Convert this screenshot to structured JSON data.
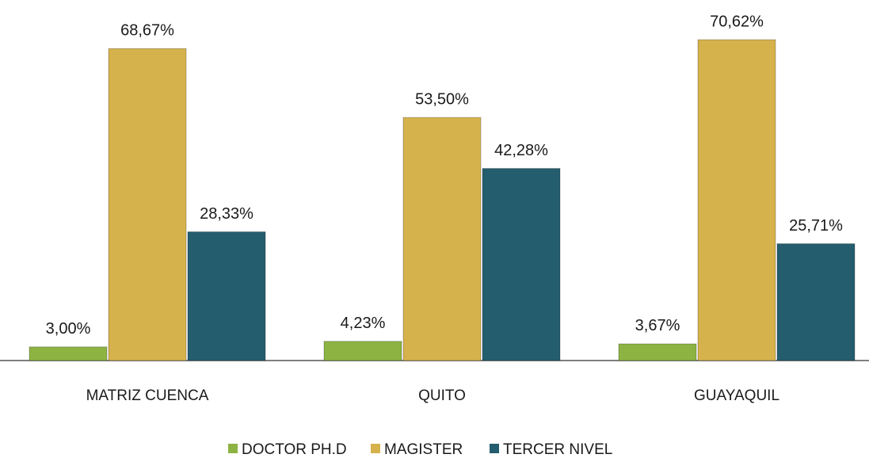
{
  "chart_data": {
    "type": "bar",
    "categories": [
      "MATRIZ CUENCA",
      "QUITO",
      "GUAYAQUIL"
    ],
    "series": [
      {
        "name": "DOCTOR PH.D",
        "color": "#8db343",
        "values": [
          3.0,
          4.23,
          3.67
        ],
        "value_labels": [
          "3,00%",
          "4,23%",
          "3,67%"
        ]
      },
      {
        "name": "MAGISTER",
        "color": "#d6b24d",
        "values": [
          68.67,
          53.5,
          70.62
        ],
        "value_labels": [
          "68,67%",
          "53,50%",
          "70,62%"
        ]
      },
      {
        "name": "TERCER NIVEL",
        "color": "#245d6e",
        "values": [
          28.33,
          42.28,
          25.71
        ],
        "value_labels": [
          "28,33%",
          "42,28%",
          "25,71%"
        ]
      }
    ],
    "ylim": [
      0,
      75
    ]
  }
}
